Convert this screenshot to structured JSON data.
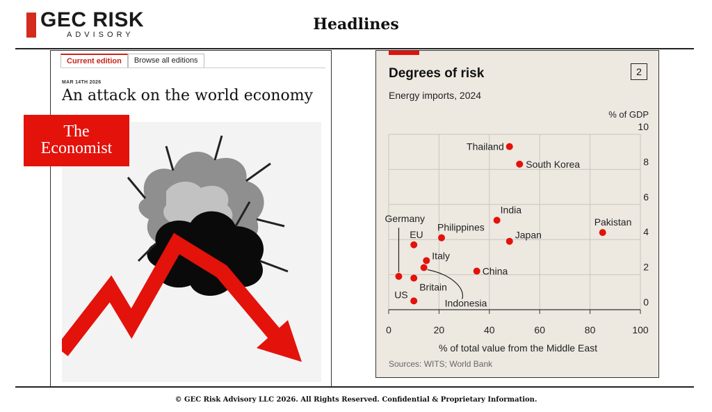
{
  "header": {
    "logo_name": "GEC RISK",
    "logo_sub": "ADVISORY",
    "title": "Headlines"
  },
  "economist_panel": {
    "tabs": [
      {
        "label": "Current edition",
        "active": true
      },
      {
        "label": "Browse all editions",
        "active": false
      }
    ],
    "date": "MAR 14TH 2026",
    "headline": "An attack on the world economy",
    "logo_line1": "The",
    "logo_line2": "Economist"
  },
  "chart_panel": {
    "number": "2"
  },
  "chart_data": {
    "type": "scatter",
    "title": "Degrees of risk",
    "subtitle": "Energy imports, 2024",
    "ylabel": "% of GDP",
    "xlabel": "% of total value from the Middle East",
    "xlim": [
      0,
      100
    ],
    "ylim": [
      0,
      10
    ],
    "xticks": [
      0,
      20,
      40,
      60,
      80,
      100
    ],
    "yticks": [
      0,
      2,
      4,
      6,
      8,
      10
    ],
    "grid": true,
    "marker_color": "#e3120b",
    "source": "Sources: WITS; World Bank",
    "points": [
      {
        "label": "Thailand",
        "x": 48,
        "y": 9.3
      },
      {
        "label": "South Korea",
        "x": 52,
        "y": 8.3
      },
      {
        "label": "India",
        "x": 43,
        "y": 5.1
      },
      {
        "label": "Pakistan",
        "x": 85,
        "y": 4.4
      },
      {
        "label": "Japan",
        "x": 48,
        "y": 3.9
      },
      {
        "label": "Philippines",
        "x": 21,
        "y": 4.1
      },
      {
        "label": "EU",
        "x": 10,
        "y": 3.7
      },
      {
        "label": "Germany",
        "x": 4,
        "y": 1.9
      },
      {
        "label": "Italy",
        "x": 15,
        "y": 2.8
      },
      {
        "label": "China",
        "x": 35,
        "y": 2.2
      },
      {
        "label": "Indonesia",
        "x": 14,
        "y": 2.4
      },
      {
        "label": "Britain",
        "x": 10,
        "y": 1.8
      },
      {
        "label": "US",
        "x": 10,
        "y": 0.5
      }
    ]
  },
  "footer": {
    "text": "© GEC Risk Advisory LLC 2026. All Rights Reserved. Confidential & Proprietary Information."
  }
}
